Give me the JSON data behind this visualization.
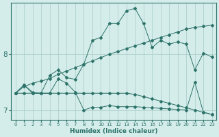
{
  "bg_color": "#d4ecea",
  "line_color": "#2d7369",
  "grid_color": "#a8ccca",
  "xlabel": "Humidex (Indice chaleur)",
  "xlim": [
    -0.5,
    23.5
  ],
  "ylim": [
    6.82,
    8.92
  ],
  "ytick_vals": [
    7,
    8
  ],
  "xtick_vals": [
    0,
    1,
    2,
    3,
    4,
    5,
    6,
    7,
    8,
    9,
    10,
    11,
    12,
    13,
    14,
    15,
    16,
    17,
    18,
    19,
    20,
    21,
    22,
    23
  ],
  "series": {
    "upper_bound": [
      7.3,
      7.42,
      7.48,
      7.52,
      7.56,
      7.64,
      7.7,
      7.76,
      7.82,
      7.88,
      7.94,
      8.0,
      8.05,
      8.1,
      8.15,
      8.2,
      8.25,
      8.3,
      8.35,
      8.4,
      8.45,
      8.48,
      8.5,
      8.52
    ],
    "lower_bound": [
      7.3,
      7.3,
      7.3,
      7.3,
      7.3,
      7.3,
      7.3,
      7.3,
      7.3,
      7.3,
      7.3,
      7.3,
      7.3,
      7.3,
      7.28,
      7.24,
      7.2,
      7.16,
      7.12,
      7.08,
      7.04,
      7.0,
      6.96,
      6.92
    ],
    "jagged_high": [
      7.3,
      7.45,
      7.3,
      7.3,
      7.62,
      7.72,
      7.58,
      7.55,
      7.82,
      8.25,
      8.3,
      8.55,
      8.55,
      8.78,
      8.82,
      8.55,
      8.12,
      8.25,
      8.18,
      8.22,
      8.18,
      7.72,
      8.02,
      7.95
    ],
    "jagged_low": [
      7.3,
      7.45,
      7.32,
      7.3,
      7.3,
      7.56,
      7.48,
      7.32,
      7.0,
      7.05,
      7.05,
      7.08,
      7.06,
      7.06,
      7.06,
      7.05,
      7.04,
      7.03,
      7.02,
      7.01,
      7.0,
      7.5,
      6.96,
      6.92
    ]
  }
}
